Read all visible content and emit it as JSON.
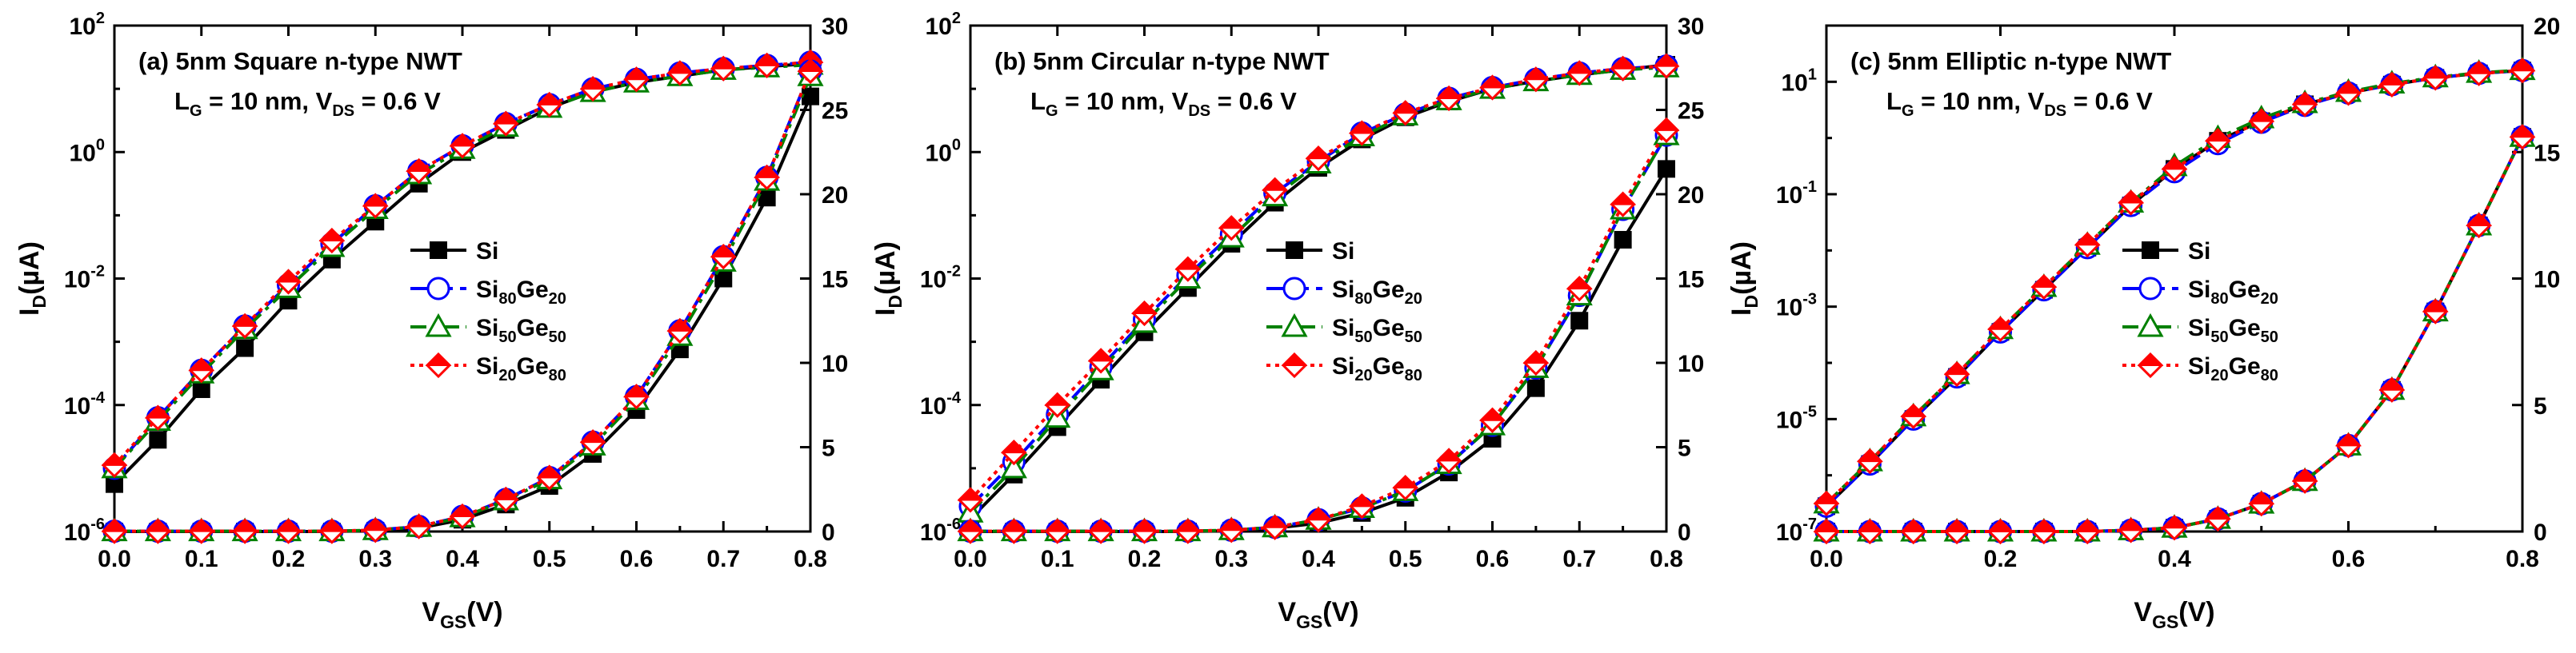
{
  "chart_data": [
    {
      "type": "line",
      "title": "(a) 5nm Square n-type NWT",
      "condition": {
        "lg_label": "L",
        "lg_sub": "G",
        "lg_value": " = 10 nm, V",
        "vds_sub": "DS",
        "vds_value": " = 0.6 V"
      },
      "xlabel": {
        "main": "V",
        "sub": "GS",
        "unit": "(V)"
      },
      "ylabel_left": {
        "main": "I",
        "sub": "D",
        "unit": "(µA)"
      },
      "xlim": [
        0,
        0.8
      ],
      "ylim_left_log_exp": [
        -6,
        2
      ],
      "ylim_right": [
        0,
        30
      ],
      "x_ticks": [
        "0.0",
        "0.1",
        "0.2",
        "0.3",
        "0.4",
        "0.5",
        "0.6",
        "0.7",
        "0.8"
      ],
      "x_tick_values": [
        0,
        0.1,
        0.2,
        0.3,
        0.4,
        0.5,
        0.6,
        0.7,
        0.8
      ],
      "y_left_ticks": [
        {
          "exp": -6,
          "base": "10",
          "sup": "-6"
        },
        {
          "exp": -4,
          "base": "10",
          "sup": "-4"
        },
        {
          "exp": -2,
          "base": "10",
          "sup": "-2"
        },
        {
          "exp": 0,
          "base": "10",
          "sup": "0"
        },
        {
          "exp": 2,
          "base": "10",
          "sup": "2"
        }
      ],
      "y_right_ticks": [
        0,
        5,
        10,
        15,
        20,
        25,
        30
      ],
      "x": [
        0,
        0.05,
        0.1,
        0.15,
        0.2,
        0.25,
        0.3,
        0.35,
        0.4,
        0.45,
        0.5,
        0.55,
        0.6,
        0.65,
        0.7,
        0.75,
        0.8
      ],
      "series_log": [
        {
          "name": "Si",
          "values_log10": [
            -5.25,
            -4.55,
            -3.75,
            -3.1,
            -2.35,
            -1.7,
            -1.1,
            -0.5,
            0.0,
            0.35,
            0.7,
            0.95,
            1.1,
            1.2,
            1.3,
            1.35,
            1.4
          ]
        },
        {
          "name": "Si80Ge20",
          "values_log10": [
            -5.0,
            -4.2,
            -3.45,
            -2.75,
            -2.1,
            -1.45,
            -0.85,
            -0.3,
            0.1,
            0.45,
            0.75,
            1.0,
            1.15,
            1.25,
            1.32,
            1.37,
            1.42
          ]
        },
        {
          "name": "Si50Ge50",
          "values_log10": [
            -5.0,
            -4.25,
            -3.5,
            -2.8,
            -2.15,
            -1.5,
            -0.9,
            -0.35,
            0.05,
            0.4,
            0.7,
            0.95,
            1.1,
            1.2,
            1.3,
            1.34,
            1.38
          ]
        },
        {
          "name": "Si20Ge80",
          "values_log10": [
            -4.95,
            -4.2,
            -3.45,
            -2.75,
            -2.05,
            -1.4,
            -0.85,
            -0.3,
            0.1,
            0.45,
            0.75,
            1.0,
            1.15,
            1.25,
            1.32,
            1.37,
            1.42
          ]
        }
      ],
      "series_linear": [
        {
          "name": "Si",
          "values": [
            0,
            0,
            0,
            0,
            0,
            0,
            0.05,
            0.2,
            0.7,
            1.6,
            2.7,
            4.6,
            7.2,
            10.8,
            15.0,
            19.8,
            25.8
          ]
        },
        {
          "name": "Si80Ge20",
          "values": [
            0.02,
            0.02,
            0.02,
            0.02,
            0.02,
            0.02,
            0.08,
            0.3,
            0.9,
            1.9,
            3.2,
            5.3,
            8.0,
            11.9,
            16.3,
            21.0,
            27.3
          ]
        },
        {
          "name": "Si50Ge50",
          "values": [
            0.02,
            0.02,
            0.02,
            0.02,
            0.02,
            0.02,
            0.08,
            0.28,
            0.85,
            1.85,
            3.1,
            5.1,
            7.8,
            11.6,
            16.0,
            20.8,
            27.0
          ]
        },
        {
          "name": "Si20Ge80",
          "values": [
            0.02,
            0.02,
            0.02,
            0.02,
            0.02,
            0.02,
            0.08,
            0.3,
            0.9,
            1.9,
            3.2,
            5.3,
            8.0,
            11.9,
            16.3,
            21.0,
            27.3
          ]
        }
      ]
    },
    {
      "type": "line",
      "title": "(b) 5nm Circular n-type NWT",
      "condition": {
        "lg_label": "L",
        "lg_sub": "G",
        "lg_value": " = 10 nm, V",
        "vds_sub": "DS",
        "vds_value": " = 0.6 V"
      },
      "xlabel": {
        "main": "V",
        "sub": "GS",
        "unit": "(V)"
      },
      "ylabel_left": {
        "main": "I",
        "sub": "D",
        "unit": "(µA)"
      },
      "xlim": [
        0,
        0.8
      ],
      "ylim_left_log_exp": [
        -6,
        2
      ],
      "ylim_right": [
        0,
        30
      ],
      "x_ticks": [
        "0.0",
        "0.1",
        "0.2",
        "0.3",
        "0.4",
        "0.5",
        "0.6",
        "0.7",
        "0.8"
      ],
      "x_tick_values": [
        0,
        0.1,
        0.2,
        0.3,
        0.4,
        0.5,
        0.6,
        0.7,
        0.8
      ],
      "y_left_ticks": [
        {
          "exp": -6,
          "base": "10",
          "sup": "-6"
        },
        {
          "exp": -4,
          "base": "10",
          "sup": "-4"
        },
        {
          "exp": -2,
          "base": "10",
          "sup": "-2"
        },
        {
          "exp": 0,
          "base": "10",
          "sup": "0"
        },
        {
          "exp": 2,
          "base": "10",
          "sup": "2"
        }
      ],
      "y_right_ticks": [
        0,
        5,
        10,
        15,
        20,
        25,
        30
      ],
      "x": [
        0,
        0.05,
        0.1,
        0.15,
        0.2,
        0.25,
        0.3,
        0.35,
        0.4,
        0.45,
        0.5,
        0.55,
        0.6,
        0.65,
        0.7,
        0.75,
        0.8
      ],
      "series_log": [
        {
          "name": "Si",
          "values_log10": [
            -5.8,
            -5.1,
            -4.35,
            -3.6,
            -2.85,
            -2.15,
            -1.45,
            -0.8,
            -0.25,
            0.2,
            0.55,
            0.8,
            1.0,
            1.12,
            1.22,
            1.3,
            1.38
          ]
        },
        {
          "name": "Si80Ge20",
          "values_log10": [
            -5.6,
            -4.9,
            -4.15,
            -3.4,
            -2.65,
            -1.95,
            -1.3,
            -0.65,
            -0.15,
            0.3,
            0.6,
            0.85,
            1.02,
            1.15,
            1.25,
            1.32,
            1.36
          ]
        },
        {
          "name": "Si50Ge50",
          "values_log10": [
            -5.7,
            -5.0,
            -4.2,
            -3.45,
            -2.7,
            -2.0,
            -1.35,
            -0.7,
            -0.18,
            0.25,
            0.58,
            0.82,
            1.0,
            1.12,
            1.22,
            1.3,
            1.34
          ]
        },
        {
          "name": "Si20Ge80",
          "values_log10": [
            -5.5,
            -4.75,
            -4.0,
            -3.3,
            -2.55,
            -1.85,
            -1.2,
            -0.6,
            -0.1,
            0.3,
            0.62,
            0.85,
            1.02,
            1.15,
            1.25,
            1.32,
            1.36
          ]
        }
      ],
      "series_linear": [
        {
          "name": "Si",
          "values": [
            0,
            0,
            0,
            0,
            0,
            0,
            0.05,
            0.2,
            0.5,
            1.1,
            2.0,
            3.5,
            5.5,
            8.5,
            12.5,
            17.3,
            21.5
          ]
        },
        {
          "name": "Si80Ge20",
          "values": [
            0.02,
            0.02,
            0.02,
            0.02,
            0.02,
            0.02,
            0.08,
            0.25,
            0.7,
            1.4,
            2.4,
            4.0,
            6.3,
            9.7,
            14.0,
            19.1,
            23.5
          ]
        },
        {
          "name": "Si50Ge50",
          "values": [
            0.02,
            0.02,
            0.02,
            0.02,
            0.02,
            0.02,
            0.08,
            0.25,
            0.7,
            1.4,
            2.4,
            4.0,
            6.3,
            9.7,
            14.0,
            19.1,
            23.5
          ]
        },
        {
          "name": "Si20Ge80",
          "values": [
            0.02,
            0.02,
            0.02,
            0.02,
            0.02,
            0.02,
            0.08,
            0.25,
            0.7,
            1.5,
            2.6,
            4.2,
            6.6,
            10.0,
            14.4,
            19.4,
            23.8
          ]
        }
      ]
    },
    {
      "type": "line",
      "title": "(c) 5nm Elliptic n-type NWT",
      "condition": {
        "lg_label": "L",
        "lg_sub": "G",
        "lg_value": " = 10 nm, V",
        "vds_sub": "DS",
        "vds_value": " = 0.6 V"
      },
      "xlabel": {
        "main": "V",
        "sub": "GS",
        "unit": "(V)"
      },
      "ylabel_left": {
        "main": "I",
        "sub": "D",
        "unit": "(µA)"
      },
      "xlim": [
        0,
        0.8
      ],
      "ylim_left_log_exp": [
        -7,
        2
      ],
      "ylim_right": [
        0,
        20
      ],
      "x_ticks": [
        "0.0",
        "0.2",
        "0.4",
        "0.6",
        "0.8"
      ],
      "x_tick_values": [
        0,
        0.2,
        0.4,
        0.6,
        0.8
      ],
      "y_left_ticks": [
        {
          "exp": -7,
          "base": "10",
          "sup": "-7"
        },
        {
          "exp": -5,
          "base": "10",
          "sup": "-5"
        },
        {
          "exp": -3,
          "base": "10",
          "sup": "-3"
        },
        {
          "exp": -1,
          "base": "10",
          "sup": "-1"
        },
        {
          "exp": 1,
          "base": "10",
          "sup": "1"
        }
      ],
      "y_right_ticks": [
        0,
        5,
        10,
        15,
        20
      ],
      "x": [
        0,
        0.05,
        0.1,
        0.15,
        0.2,
        0.25,
        0.3,
        0.35,
        0.4,
        0.45,
        0.5,
        0.55,
        0.6,
        0.65,
        0.7,
        0.75,
        0.8
      ],
      "series_log": [
        {
          "name": "Si",
          "values_log10": [
            -6.55,
            -5.8,
            -5.0,
            -4.25,
            -3.45,
            -2.7,
            -1.95,
            -1.2,
            -0.55,
            -0.05,
            0.3,
            0.6,
            0.8,
            0.95,
            1.07,
            1.15,
            1.2
          ]
        },
        {
          "name": "Si80Ge20",
          "values_log10": [
            -6.55,
            -5.8,
            -5.0,
            -4.25,
            -3.45,
            -2.7,
            -1.95,
            -1.2,
            -0.6,
            -0.1,
            0.28,
            0.58,
            0.8,
            0.95,
            1.07,
            1.15,
            1.2
          ]
        },
        {
          "name": "Si50Ge50",
          "values_log10": [
            -6.5,
            -5.75,
            -4.95,
            -4.2,
            -3.4,
            -2.65,
            -1.9,
            -1.15,
            -0.5,
            0.0,
            0.35,
            0.62,
            0.82,
            0.97,
            1.08,
            1.16,
            1.21
          ]
        },
        {
          "name": "Si20Ge80",
          "values_log10": [
            -6.5,
            -5.75,
            -4.95,
            -4.2,
            -3.4,
            -2.65,
            -1.9,
            -1.15,
            -0.55,
            -0.05,
            0.3,
            0.6,
            0.8,
            0.95,
            1.07,
            1.15,
            1.2
          ]
        }
      ],
      "series_linear": [
        {
          "name": "Si",
          "values": [
            0,
            0,
            0,
            0,
            0,
            0,
            0,
            0.05,
            0.15,
            0.5,
            1.1,
            2.0,
            3.4,
            5.6,
            8.7,
            12.1,
            15.6
          ]
        },
        {
          "name": "Si80Ge20",
          "values": [
            0,
            0,
            0,
            0,
            0,
            0,
            0,
            0.05,
            0.15,
            0.5,
            1.1,
            2.0,
            3.4,
            5.6,
            8.7,
            12.1,
            15.6
          ]
        },
        {
          "name": "Si50Ge50",
          "values": [
            0,
            0,
            0,
            0,
            0,
            0,
            0,
            0.05,
            0.15,
            0.5,
            1.1,
            2.0,
            3.4,
            5.6,
            8.7,
            12.1,
            15.6
          ]
        },
        {
          "name": "Si20Ge80",
          "values": [
            0,
            0,
            0,
            0,
            0,
            0,
            0,
            0.05,
            0.15,
            0.5,
            1.1,
            2.0,
            3.4,
            5.6,
            8.7,
            12.1,
            15.6
          ]
        }
      ]
    }
  ],
  "legend": [
    {
      "name": "Si",
      "base": "Si",
      "sub1": "",
      "mid": "",
      "sub2": "",
      "color": "#000000",
      "marker": "square",
      "dash": ""
    },
    {
      "name": "Si80Ge20",
      "base": "Si",
      "sub1": "80",
      "mid": "Ge",
      "sub2": "20",
      "color": "#0000ff",
      "marker": "circle",
      "dash": "22,9"
    },
    {
      "name": "Si50Ge50",
      "base": "Si",
      "sub1": "50",
      "mid": "Ge",
      "sub2": "50",
      "color": "#008000",
      "marker": "triangle",
      "dash": "20,8,5,8"
    },
    {
      "name": "Si20Ge80",
      "base": "Si",
      "sub1": "20",
      "mid": "Ge",
      "sub2": "80",
      "color": "#ff0000",
      "marker": "diamond",
      "dash": "5,6"
    }
  ]
}
